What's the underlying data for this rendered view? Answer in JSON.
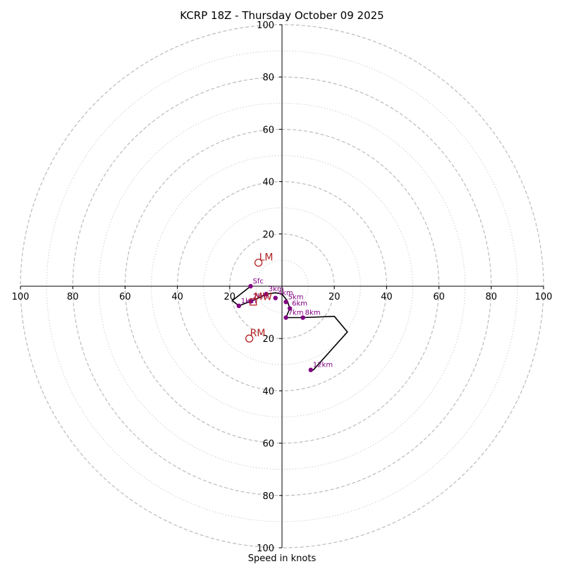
{
  "chart_data": {
    "type": "hodograph",
    "title": "KCRP 18Z - Thursday October 09 2025",
    "xlabel": "Speed in knots",
    "units": "knots",
    "range": [
      -100,
      100
    ],
    "major_rings": [
      20,
      40,
      60,
      80,
      100
    ],
    "minor_rings": [
      10,
      30,
      50,
      70,
      90
    ],
    "x_tick_labels": [
      "100",
      "80",
      "60",
      "40",
      "20",
      "20",
      "40",
      "60",
      "80",
      "100"
    ],
    "x_tick_values": [
      -100,
      -80,
      -60,
      -40,
      -20,
      20,
      40,
      60,
      80,
      100
    ],
    "y_tick_labels": [
      "100",
      "80",
      "60",
      "40",
      "20",
      "20",
      "40",
      "60",
      "80",
      "100"
    ],
    "y_tick_values": [
      100,
      80,
      60,
      40,
      20,
      -20,
      -40,
      -60,
      -80,
      -100
    ],
    "wind_profile": [
      {
        "u": -12,
        "v": 0
      },
      {
        "u": -19,
        "v": -5.5
      },
      {
        "u": -16.5,
        "v": -7.5
      },
      {
        "u": -10,
        "v": -5
      },
      {
        "u": -6,
        "v": -3
      },
      {
        "u": -2.5,
        "v": -2.5
      },
      {
        "u": 0,
        "v": -3
      },
      {
        "u": 2,
        "v": -5.5
      },
      {
        "u": 3,
        "v": -8.5
      },
      {
        "u": 1.5,
        "v": -12
      },
      {
        "u": 8,
        "v": -12
      },
      {
        "u": 20,
        "v": -11.5
      },
      {
        "u": 25,
        "v": -17.5
      },
      {
        "u": 12,
        "v": -32
      },
      {
        "u": 11,
        "v": -32
      }
    ],
    "height_markers": [
      {
        "label": "Sfc",
        "u": -12,
        "v": 0
      },
      {
        "label": "1km",
        "u": -16.5,
        "v": -7.5
      },
      {
        "label": "2km",
        "u": -12,
        "v": -5.8
      },
      {
        "label": "3km",
        "u": -6,
        "v": -3
      },
      {
        "label": "4km",
        "u": -2.5,
        "v": -4.5
      },
      {
        "label": "5km",
        "u": 1.5,
        "v": -6
      },
      {
        "label": "6km",
        "u": 3,
        "v": -8.5
      },
      {
        "label": "7km",
        "u": 1.5,
        "v": -12
      },
      {
        "label": "8km",
        "u": 8,
        "v": -12
      },
      {
        "label": "12km",
        "u": 11,
        "v": -32
      }
    ],
    "storm_motion": [
      {
        "label": "LM",
        "u": -9,
        "v": 9,
        "symbol": "circle"
      },
      {
        "label": "RM",
        "u": -12.5,
        "v": -20,
        "symbol": "circle"
      },
      {
        "label": "MW",
        "u": -11,
        "v": -6,
        "symbol": "square"
      }
    ],
    "colors": {
      "profile": "#000000",
      "height_point": "#800080",
      "storm_marker": "#b22222",
      "grid": "#bbbbbb",
      "axis": "#000000"
    }
  }
}
